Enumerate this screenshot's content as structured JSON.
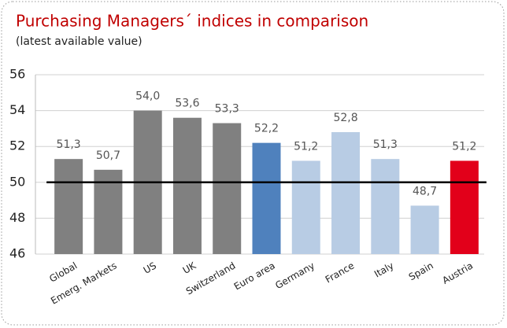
{
  "chart_data": {
    "type": "bar",
    "title": "Purchasing Managers´ indices in comparison",
    "subtitle": "(latest available value)",
    "categories": [
      "Global",
      "Emerg. Markets",
      "US",
      "UK",
      "Switzerland",
      "Euro area",
      "Germany",
      "France",
      "Italy",
      "Spain",
      "Austria"
    ],
    "values": [
      51.3,
      50.7,
      54.0,
      53.6,
      53.3,
      52.2,
      51.2,
      52.8,
      51.3,
      48.7,
      51.2
    ],
    "value_labels": [
      "51,3",
      "50,7",
      "54,0",
      "53,6",
      "53,3",
      "52,2",
      "51,2",
      "52,8",
      "51,3",
      "48,7",
      "51,2"
    ],
    "colors": [
      "#808080",
      "#808080",
      "#808080",
      "#808080",
      "#808080",
      "#4f81bd",
      "#b8cce4",
      "#b8cce4",
      "#b8cce4",
      "#b8cce4",
      "#e2001a"
    ],
    "ylim": [
      46,
      56
    ],
    "yticks": [
      46,
      48,
      50,
      52,
      54,
      56
    ],
    "grid": true,
    "reference_line": 50
  }
}
